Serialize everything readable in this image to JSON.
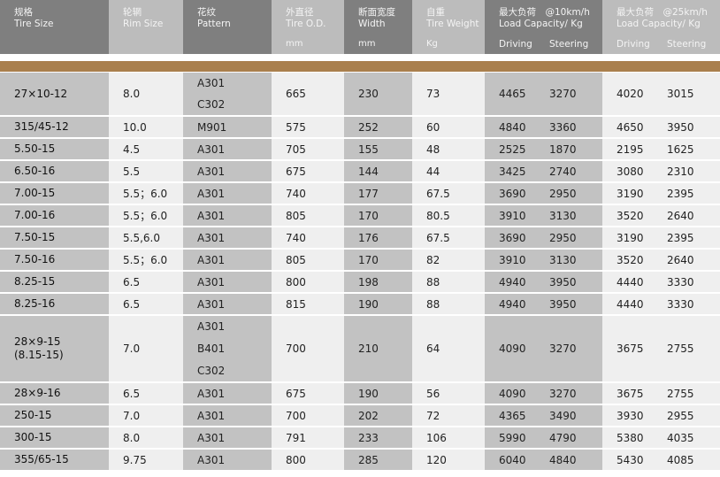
{
  "header": [
    {
      "zh": "规格",
      "en": "Tire Size",
      "unit": ""
    },
    {
      "zh": "轮辋",
      "en": "Rim Size",
      "unit": ""
    },
    {
      "zh": "花纹",
      "en": "Pattern",
      "unit": ""
    },
    {
      "zh": "外直径",
      "en": "Tire O.D.",
      "unit": "mm"
    },
    {
      "zh": "断面宽度",
      "en": "Width",
      "unit": "mm"
    },
    {
      "zh": "自重",
      "en": "Tire Weight",
      "unit": "Kg"
    },
    {
      "zh": "最大负荷　@10km/h",
      "en": "Load Capacity/  Kg",
      "driving": "Driving",
      "steering": "Steering"
    },
    {
      "zh": "最大负荷　@25km/h",
      "en": "Load Capacity/ Kg",
      "driving": "Driving",
      "steering": "Steering"
    }
  ],
  "accent": "#a97f4d",
  "rows": [
    {
      "size": "27×10-12",
      "rim": "8.0",
      "pattern": [
        "A301",
        "C302"
      ],
      "od": "665",
      "width": "230",
      "weight": "73",
      "d10": "4465",
      "s10": "3270",
      "d25": "4020",
      "s25": "3015"
    },
    {
      "size": "315/45-12",
      "rim": "10.0",
      "pattern": [
        "M901"
      ],
      "od": "575",
      "width": "252",
      "weight": "60",
      "d10": "4840",
      "s10": "3360",
      "d25": "4650",
      "s25": "3950"
    },
    {
      "size": "5.50-15",
      "rim": "4.5",
      "pattern": [
        "A301"
      ],
      "od": "705",
      "width": "155",
      "weight": "48",
      "d10": "2525",
      "s10": "1870",
      "d25": "2195",
      "s25": "1625"
    },
    {
      "size": "6.50-16",
      "rim": "5.5",
      "pattern": [
        "A301"
      ],
      "od": "675",
      "width": "144",
      "weight": "44",
      "d10": "3425",
      "s10": "2740",
      "d25": "3080",
      "s25": "2310"
    },
    {
      "size": "7.00-15",
      "rim": "5.5；6.0",
      "pattern": [
        "A301"
      ],
      "od": "740",
      "width": "177",
      "weight": "67.5",
      "d10": "3690",
      "s10": "2950",
      "d25": "3190",
      "s25": "2395"
    },
    {
      "size": "7.00-16",
      "rim": "5.5；6.0",
      "pattern": [
        "A301"
      ],
      "od": "805",
      "width": "170",
      "weight": "80.5",
      "d10": "3910",
      "s10": "3130",
      "d25": "3520",
      "s25": "2640"
    },
    {
      "size": "7.50-15",
      "rim": "5.5,6.0",
      "pattern": [
        "A301"
      ],
      "od": "740",
      "width": "176",
      "weight": "67.5",
      "d10": "3690",
      "s10": "2950",
      "d25": "3190",
      "s25": "2395"
    },
    {
      "size": "7.50-16",
      "rim": "5.5；6.0",
      "pattern": [
        "A301"
      ],
      "od": "805",
      "width": "170",
      "weight": "82",
      "d10": "3910",
      "s10": "3130",
      "d25": "3520",
      "s25": "2640"
    },
    {
      "size": "8.25-15",
      "rim": "6.5",
      "pattern": [
        "A301"
      ],
      "od": "800",
      "width": "198",
      "weight": "88",
      "d10": "4940",
      "s10": "3950",
      "d25": "4440",
      "s25": "3330"
    },
    {
      "size": "8.25-16",
      "rim": "6.5",
      "pattern": [
        "A301"
      ],
      "od": "815",
      "width": "190",
      "weight": "88",
      "d10": "4940",
      "s10": "3950",
      "d25": "4440",
      "s25": "3330"
    },
    {
      "size": "28×9-15\n(8.15-15)",
      "rim": "7.0",
      "pattern": [
        "A301",
        "B401",
        "C302"
      ],
      "od": "700",
      "width": "210",
      "weight": "64",
      "d10": "4090",
      "s10": "3270",
      "d25": "3675",
      "s25": "2755"
    },
    {
      "size": "28×9-16",
      "rim": "6.5",
      "pattern": [
        "A301"
      ],
      "od": "675",
      "width": "190",
      "weight": "56",
      "d10": "4090",
      "s10": "3270",
      "d25": "3675",
      "s25": "2755"
    },
    {
      "size": "250-15",
      "rim": "7.0",
      "pattern": [
        "A301"
      ],
      "od": "700",
      "width": "202",
      "weight": "72",
      "d10": "4365",
      "s10": "3490",
      "d25": "3930",
      "s25": "2955"
    },
    {
      "size": "300-15",
      "rim": "8.0",
      "pattern": [
        "A301"
      ],
      "od": "791",
      "width": "233",
      "weight": "106",
      "d10": "5990",
      "s10": "4790",
      "d25": "5380",
      "s25": "4035"
    },
    {
      "size": "355/65-15",
      "rim": "9.75",
      "pattern": [
        "A301"
      ],
      "od": "800",
      "width": "285",
      "weight": "120",
      "d10": "6040",
      "s10": "4840",
      "d25": "5430",
      "s25": "4085"
    }
  ]
}
